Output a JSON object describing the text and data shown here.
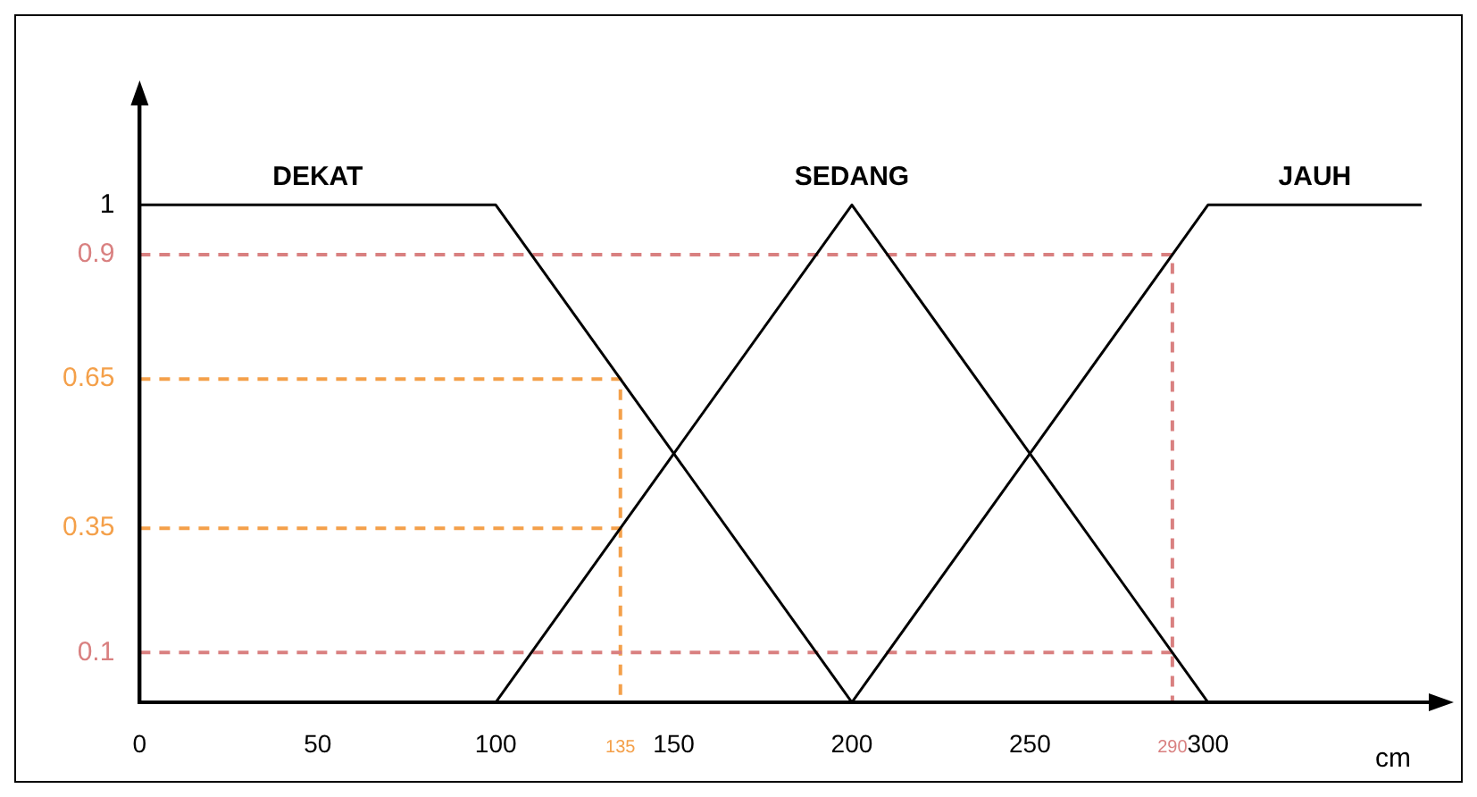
{
  "chart_data": {
    "type": "line",
    "xlabel": "cm",
    "marker": "none",
    "xlim": [
      0,
      362
    ],
    "ylim": [
      0,
      1.2
    ],
    "xticks": [
      0,
      50,
      100,
      135,
      150,
      200,
      250,
      290,
      300
    ],
    "yticks": [
      0.1,
      0.35,
      0.65,
      0.9,
      1
    ],
    "series": [
      {
        "name": "DEKAT",
        "color": "#000000",
        "x": [
          0,
          100,
          200
        ],
        "values": [
          1,
          1,
          0
        ]
      },
      {
        "name": "SEDANG",
        "color": "#000000",
        "x": [
          100,
          200,
          300
        ],
        "values": [
          0,
          1,
          0
        ]
      },
      {
        "name": "JAUH",
        "color": "#000000",
        "x": [
          200,
          300,
          360
        ],
        "values": [
          0,
          1,
          1
        ]
      },
      {
        "color": "#d98080",
        "line_style": "dashed",
        "x": [
          0,
          290,
          290
        ],
        "values": [
          0.9,
          0.9,
          0
        ]
      },
      {
        "color": "#d98080",
        "line_style": "dashed",
        "x": [
          0,
          290
        ],
        "values": [
          0.1,
          0.1
        ]
      },
      {
        "color": "#f4a04a",
        "line_style": "dashed",
        "x": [
          0,
          135,
          135
        ],
        "values": [
          0.65,
          0.65,
          0
        ]
      },
      {
        "color": "#f4a04a",
        "line_style": "dashed",
        "x": [
          0,
          135
        ],
        "values": [
          0.35,
          0.35
        ]
      }
    ]
  }
}
